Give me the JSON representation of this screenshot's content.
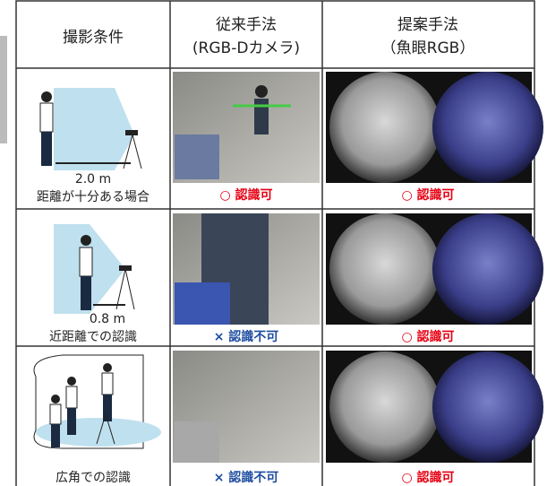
{
  "header": {
    "condition": "撮影条件",
    "baseline": [
      "従来手法",
      "(RGB-Dカメラ)"
    ],
    "proposed": [
      "提案手法",
      "（魚眼RGB）"
    ]
  },
  "rows": [
    {
      "distance": "2.0 m",
      "condition": "距離が十分ある場合",
      "baseline": "○ 認識可",
      "proposed": "○ 認識可"
    },
    {
      "distance": "0.8 m",
      "condition": "近距離での認識",
      "baseline": "× 認識不可",
      "proposed": "○ 認識可"
    },
    {
      "condition": "広角での認識",
      "baseline": "× 認識不可",
      "proposed": "○ 認識可"
    }
  ]
}
